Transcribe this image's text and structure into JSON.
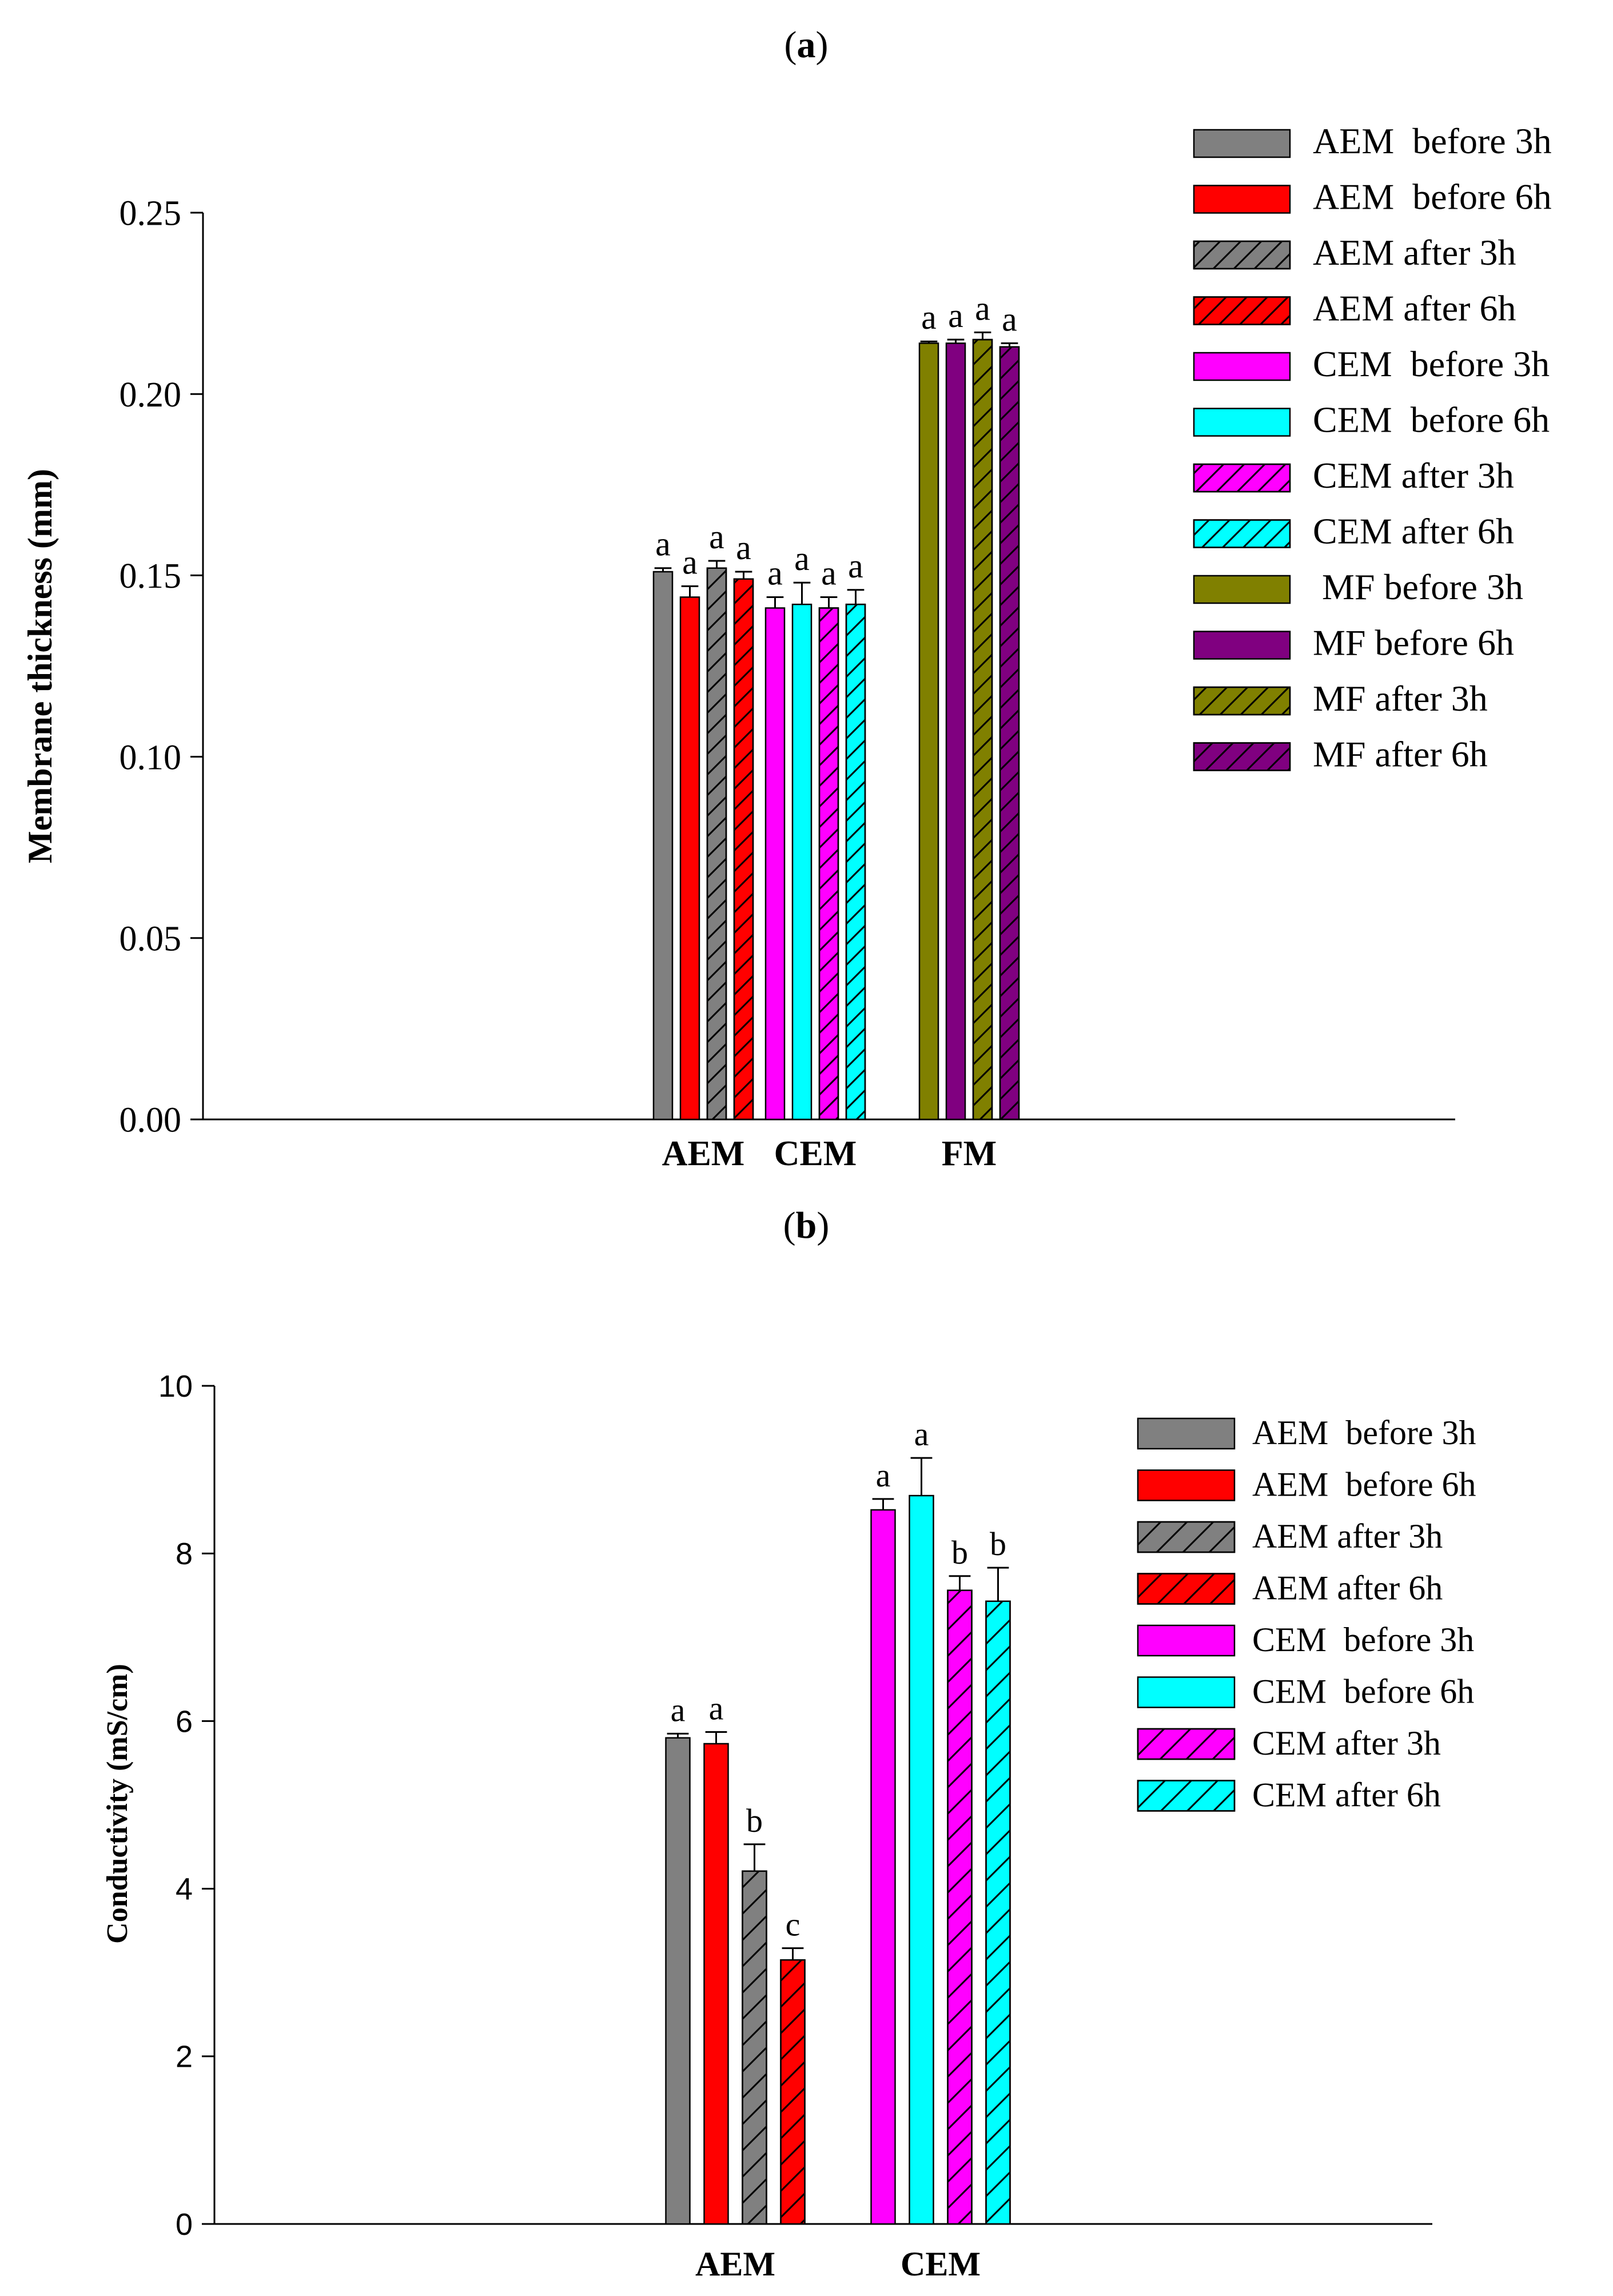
{
  "chart_data": [
    {
      "panel_label": "(a)",
      "panel_letter": "a",
      "type": "bar",
      "title": "",
      "xlabel": "",
      "ylabel": "Membrane thickness (mm)",
      "ylim": [
        0,
        0.25
      ],
      "yticks": [
        "0.00",
        "0.05",
        "0.10",
        "0.15",
        "0.20",
        "0.25"
      ],
      "categories": [
        "AEM",
        "CEM",
        "FM"
      ],
      "legend_position": "top-right",
      "series": [
        {
          "name": "AEM  before 3h",
          "color": "#808080",
          "hatch": false,
          "values": [
            0.151,
            null,
            null
          ],
          "errors": [
            0.001,
            null,
            null
          ],
          "labels": [
            "a",
            null,
            null
          ]
        },
        {
          "name": "AEM  before 6h",
          "color": "#ff0000",
          "hatch": false,
          "values": [
            0.144,
            null,
            null
          ],
          "errors": [
            0.003,
            null,
            null
          ],
          "labels": [
            "a",
            null,
            null
          ]
        },
        {
          "name": "AEM after 3h",
          "color": "#808080",
          "hatch": true,
          "values": [
            0.152,
            null,
            null
          ],
          "errors": [
            0.002,
            null,
            null
          ],
          "labels": [
            "a",
            null,
            null
          ]
        },
        {
          "name": "AEM after 6h",
          "color": "#ff0000",
          "hatch": true,
          "values": [
            0.149,
            null,
            null
          ],
          "errors": [
            0.002,
            null,
            null
          ],
          "labels": [
            "a",
            null,
            null
          ]
        },
        {
          "name": "CEM  before 3h",
          "color": "#ff00ff",
          "hatch": false,
          "values": [
            null,
            0.141,
            null
          ],
          "errors": [
            null,
            0.003,
            null
          ],
          "labels": [
            null,
            "a",
            null
          ]
        },
        {
          "name": "CEM  before 6h",
          "color": "#00ffff",
          "hatch": false,
          "values": [
            null,
            0.142,
            null
          ],
          "errors": [
            null,
            0.006,
            null
          ],
          "labels": [
            null,
            "a",
            null
          ]
        },
        {
          "name": "CEM after 3h",
          "color": "#ff00ff",
          "hatch": true,
          "values": [
            null,
            0.141,
            null
          ],
          "errors": [
            null,
            0.003,
            null
          ],
          "labels": [
            null,
            "a",
            null
          ]
        },
        {
          "name": "CEM after 6h",
          "color": "#00ffff",
          "hatch": true,
          "values": [
            null,
            0.142,
            null
          ],
          "errors": [
            null,
            0.004,
            null
          ],
          "labels": [
            null,
            "a",
            null
          ]
        },
        {
          "name": " MF before 3h",
          "color": "#808000",
          "hatch": false,
          "values": [
            null,
            null,
            0.214
          ],
          "errors": [
            null,
            null,
            0.0005
          ],
          "labels": [
            null,
            null,
            "a"
          ]
        },
        {
          "name": "MF before 6h",
          "color": "#800080",
          "hatch": false,
          "values": [
            null,
            null,
            0.214
          ],
          "errors": [
            null,
            null,
            0.001
          ],
          "labels": [
            null,
            null,
            "a"
          ]
        },
        {
          "name": "MF after 3h",
          "color": "#808000",
          "hatch": true,
          "values": [
            null,
            null,
            0.215
          ],
          "errors": [
            null,
            null,
            0.002
          ],
          "labels": [
            null,
            null,
            "a"
          ]
        },
        {
          "name": "MF after 6h",
          "color": "#800080",
          "hatch": true,
          "values": [
            null,
            null,
            0.213
          ],
          "errors": [
            null,
            null,
            0.001
          ],
          "labels": [
            null,
            null,
            "a"
          ]
        }
      ]
    },
    {
      "panel_label": "(b)",
      "panel_letter": "b",
      "type": "bar",
      "title": "",
      "xlabel": "",
      "ylabel": "Conductivity (mS/cm)",
      "ylim": [
        0,
        10
      ],
      "yticks": [
        "0",
        "2",
        "4",
        "6",
        "8",
        "10"
      ],
      "categories": [
        "AEM",
        "CEM"
      ],
      "legend_position": "top-right",
      "series": [
        {
          "name": "AEM  before 3h",
          "color": "#808080",
          "hatch": false,
          "values": [
            5.8,
            null
          ],
          "errors": [
            0.05,
            null
          ],
          "labels": [
            "a",
            null
          ]
        },
        {
          "name": "AEM  before 6h",
          "color": "#ff0000",
          "hatch": false,
          "values": [
            5.73,
            null
          ],
          "errors": [
            0.14,
            null
          ],
          "labels": [
            "a",
            null
          ]
        },
        {
          "name": "AEM after 3h",
          "color": "#808080",
          "hatch": true,
          "values": [
            4.21,
            null
          ],
          "errors": [
            0.32,
            null
          ],
          "labels": [
            "b",
            null
          ]
        },
        {
          "name": "AEM after 6h",
          "color": "#ff0000",
          "hatch": true,
          "values": [
            3.15,
            null
          ],
          "errors": [
            0.14,
            null
          ],
          "labels": [
            "c",
            null
          ]
        },
        {
          "name": "CEM  before 3h",
          "color": "#ff00ff",
          "hatch": false,
          "values": [
            null,
            8.52
          ],
          "errors": [
            null,
            0.13
          ],
          "labels": [
            null,
            "a"
          ]
        },
        {
          "name": "CEM  before 6h",
          "color": "#00ffff",
          "hatch": false,
          "values": [
            null,
            8.69
          ],
          "errors": [
            null,
            0.45
          ],
          "labels": [
            null,
            "a"
          ]
        },
        {
          "name": "CEM after 3h",
          "color": "#ff00ff",
          "hatch": true,
          "values": [
            null,
            7.56
          ],
          "errors": [
            null,
            0.17
          ],
          "labels": [
            null,
            "b"
          ]
        },
        {
          "name": "CEM after 6h",
          "color": "#00ffff",
          "hatch": true,
          "values": [
            null,
            7.43
          ],
          "errors": [
            null,
            0.4
          ],
          "labels": [
            null,
            "b"
          ]
        }
      ]
    }
  ]
}
